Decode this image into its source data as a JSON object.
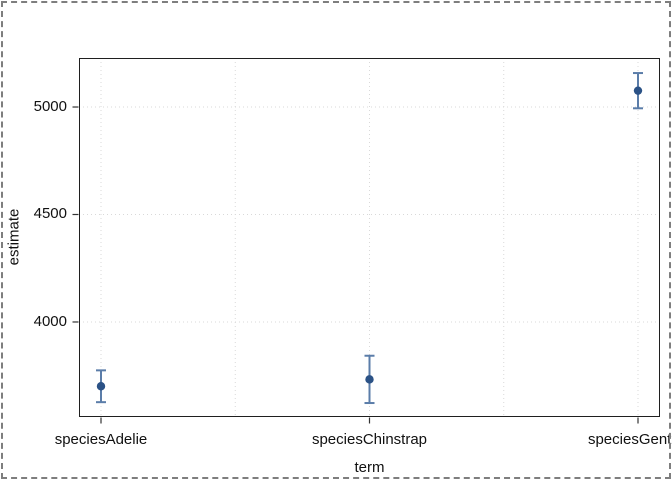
{
  "chart_data": {
    "type": "pointrange",
    "title": "",
    "xlabel": "term",
    "ylabel": "estimate",
    "categories": [
      "speciesAdelie",
      "speciesChinstrap",
      "speciesGentoo"
    ],
    "points": [
      {
        "term": "speciesAdelie",
        "estimate": 3701,
        "conf_low": 3627,
        "conf_high": 3775
      },
      {
        "term": "speciesChinstrap",
        "estimate": 3733,
        "conf_low": 3623,
        "conf_high": 3843
      },
      {
        "term": "speciesGentoo",
        "estimate": 5076,
        "conf_low": 4994,
        "conf_high": 5158
      }
    ],
    "yticks": [
      4000,
      4500,
      5000
    ],
    "ylim": [
      3558,
      5228
    ],
    "grid": "dotted major x+y, dotted minor x at category midpoints",
    "legend": "none",
    "colors": {
      "point": "#2b5286",
      "errorbar": "#5b7da9",
      "grid": "#d9d9d9",
      "axis": "#1f1f1f",
      "tick": "#333333",
      "text": "#111111",
      "page_border": "#7e7e7e"
    }
  }
}
